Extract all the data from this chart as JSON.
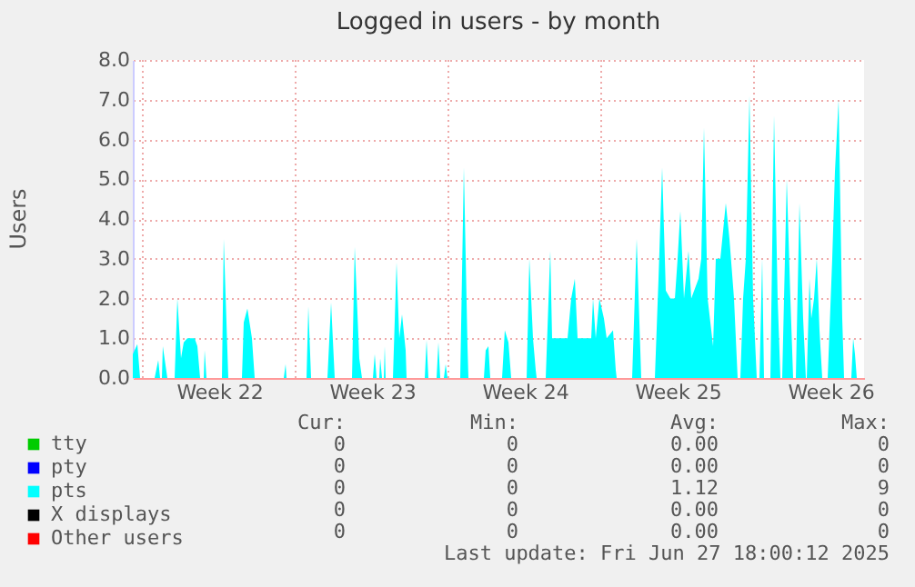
{
  "chart_data": {
    "type": "area",
    "title": "Logged in users - by month",
    "ylabel": "Users",
    "xlim": [
      "2025-05-25T13:00",
      "2025-06-28T01:00"
    ],
    "xticks": [
      {
        "value": "2025-05-26",
        "label": null
      },
      {
        "value": "2025-05-29T12:00",
        "label": "Week 22"
      },
      {
        "value": "2025-06-02",
        "label": null
      },
      {
        "value": "2025-06-05T12:00",
        "label": "Week 23"
      },
      {
        "value": "2025-06-09",
        "label": null
      },
      {
        "value": "2025-06-12T12:00",
        "label": "Week 24"
      },
      {
        "value": "2025-06-16",
        "label": null
      },
      {
        "value": "2025-06-19T12:00",
        "label": "Week 25"
      },
      {
        "value": "2025-06-23",
        "label": null
      },
      {
        "value": "2025-06-26T12:00",
        "label": "Week 26"
      }
    ],
    "ylim": [
      0,
      8
    ],
    "yticks": [
      {
        "value": 0,
        "label": "0.0"
      },
      {
        "value": 1,
        "label": "1.0"
      },
      {
        "value": 2,
        "label": "2.0"
      },
      {
        "value": 3,
        "label": "3.0"
      },
      {
        "value": 4,
        "label": "4.0"
      },
      {
        "value": 5,
        "label": "5.0"
      },
      {
        "value": 6,
        "label": "6.0"
      },
      {
        "value": 7,
        "label": "7.0"
      },
      {
        "value": 8,
        "label": "8.0"
      }
    ],
    "grid": true,
    "legend": "bottom",
    "series": [
      {
        "name": "tty",
        "color": "#00cc00"
      },
      {
        "name": "pty",
        "color": "#0000ff"
      },
      {
        "name": "pts",
        "color": "#00ffff",
        "x": [
          "2025-05-25T13:00",
          "2025-05-25T18:00",
          "2025-05-25T21:00",
          "2025-05-26T13:00",
          "2025-05-26T17:00",
          "2025-05-26T19:00",
          "2025-05-26T21:00",
          "2025-05-26T22:00",
          "2025-05-27T03:00",
          "2025-05-27T11:00",
          "2025-05-27T14:00",
          "2025-05-27T18:00",
          "2025-05-27T21:00",
          "2025-05-28T01:00",
          "2025-05-28T09:00",
          "2025-05-28T12:00",
          "2025-05-28T15:00",
          "2025-05-28T19:00",
          "2025-05-28T20:00",
          "2025-05-28T22:00",
          "2025-05-29T15:00",
          "2025-05-29T17:00",
          "2025-05-29T22:00",
          "2025-05-30T13:00",
          "2025-05-30T15:00",
          "2025-05-30T19:00",
          "2025-05-31T00:00",
          "2025-05-31T03:00",
          "2025-06-01T11:00",
          "2025-06-01T13:00",
          "2025-06-01T14:00",
          "2025-06-02T12:00",
          "2025-06-02T14:00",
          "2025-06-02T17:00",
          "2025-06-03T11:00",
          "2025-06-03T15:00",
          "2025-06-03T19:00",
          "2025-06-04T14:00",
          "2025-06-04T17:00",
          "2025-06-04T22:00",
          "2025-06-05T01:00",
          "2025-06-05T13:00",
          "2025-06-05T15:00",
          "2025-06-05T17:00",
          "2025-06-05T20:00",
          "2025-06-05T21:00",
          "2025-06-05T23:00",
          "2025-06-06T01:00",
          "2025-06-06T02:00",
          "2025-06-06T03:00",
          "2025-06-06T11:00",
          "2025-06-06T15:00",
          "2025-06-06T18:00",
          "2025-06-06T21:00",
          "2025-06-07T01:00",
          "2025-06-07T02:00",
          "2025-06-07T22:00",
          "2025-06-08T00:00",
          "2025-06-08T02:00",
          "2025-06-08T11:00",
          "2025-06-08T13:00",
          "2025-06-08T15:00",
          "2025-06-08T19:00",
          "2025-06-08T21:00",
          "2025-06-08T23:00",
          "2025-06-09T13:00",
          "2025-06-09T17:00",
          "2025-06-09T21:00",
          "2025-06-09T22:00",
          "2025-06-10T15:00",
          "2025-06-10T17:00",
          "2025-06-10T20:00",
          "2025-06-10T22:00",
          "2025-06-11T11:00",
          "2025-06-11T14:00",
          "2025-06-11T18:00",
          "2025-06-11T21:00",
          "2025-06-12T14:00",
          "2025-06-12T17:00",
          "2025-06-12T21:00",
          "2025-06-13T00:00",
          "2025-06-13T01:00",
          "2025-06-13T11:00",
          "2025-06-13T16:00",
          "2025-06-13T18:00",
          "2025-06-14T11:00",
          "2025-06-14T15:00",
          "2025-06-14T19:00",
          "2025-06-14T22:00",
          "2025-06-15T13:00",
          "2025-06-15T15:00",
          "2025-06-15T18:00",
          "2025-06-15T22:00",
          "2025-06-16T03:00",
          "2025-06-16T06:00",
          "2025-06-16T13:00",
          "2025-06-16T16:00",
          "2025-06-16T17:00",
          "2025-06-17T10:00",
          "2025-06-17T15:00",
          "2025-06-17T20:00",
          "2025-06-18T11:00",
          "2025-06-18T15:00",
          "2025-06-18T19:00",
          "2025-06-18T23:00",
          "2025-06-19T04:00",
          "2025-06-19T09:00",
          "2025-06-19T12:00",
          "2025-06-19T15:00",
          "2025-06-19T19:00",
          "2025-06-20T00:00",
          "2025-06-20T03:00",
          "2025-06-20T11:00",
          "2025-06-20T14:00",
          "2025-06-20T17:00",
          "2025-06-20T21:00",
          "2025-06-21T03:00",
          "2025-06-21T06:00",
          "2025-06-21T11:00",
          "2025-06-21T17:00",
          "2025-06-21T21:00",
          "2025-06-22T02:00",
          "2025-06-22T06:00",
          "2025-06-22T09:00",
          "2025-06-22T12:00",
          "2025-06-22T15:00",
          "2025-06-22T19:00",
          "2025-06-22T23:00",
          "2025-06-23T03:00",
          "2025-06-23T06:00",
          "2025-06-23T09:00",
          "2025-06-23T11:00",
          "2025-06-23T18:00",
          "2025-06-23T22:00",
          "2025-06-24T02:00",
          "2025-06-24T05:00",
          "2025-06-24T07:00",
          "2025-06-24T12:00",
          "2025-06-24T16:00",
          "2025-06-24T19:00",
          "2025-06-24T22:00",
          "2025-06-25T02:00",
          "2025-06-25T06:00",
          "2025-06-25T09:00",
          "2025-06-25T10:00",
          "2025-06-25T13:00",
          "2025-06-25T15:00",
          "2025-06-25T18:00",
          "2025-06-25T21:00",
          "2025-06-26T00:00",
          "2025-06-26T03:00",
          "2025-06-26T09:00",
          "2025-06-26T14:00",
          "2025-06-26T17:00",
          "2025-06-26T21:00",
          "2025-06-27T01:00",
          "2025-06-27T03:00",
          "2025-06-27T11:00",
          "2025-06-27T13:00",
          "2025-06-27T15:00",
          "2025-06-27T17:00"
        ],
        "values": [
          0.6,
          0.85,
          0,
          0,
          0.45,
          0,
          0,
          0.8,
          0,
          0,
          2.0,
          0.5,
          0.9,
          1.0,
          1.0,
          0.8,
          0,
          0,
          0.7,
          0,
          0,
          3.5,
          0,
          0,
          1.4,
          1.75,
          1.0,
          0,
          0,
          0.35,
          0,
          0,
          1.8,
          0,
          0,
          1.9,
          0,
          0,
          3.3,
          0.5,
          0,
          0,
          0.6,
          0,
          0,
          0.5,
          0,
          0,
          0.8,
          0,
          0,
          2.9,
          1.0,
          1.6,
          0.7,
          0,
          0,
          0.95,
          0,
          0,
          0.9,
          0,
          0,
          0.35,
          0,
          0,
          5.3,
          0.8,
          0,
          0,
          0.7,
          0.8,
          0,
          0,
          1.2,
          0.9,
          0,
          0,
          3.0,
          1.0,
          0.2,
          0,
          0,
          3.2,
          1.0,
          1.0,
          2.0,
          2.5,
          1.0,
          1.0,
          2.0,
          1.0,
          2.0,
          1.5,
          1.0,
          1.2,
          0.2,
          0,
          0,
          3.5,
          0,
          0,
          2.5,
          5.3,
          2.2,
          2.0,
          2.0,
          3.0,
          4.2,
          2.0,
          3.2,
          2.0,
          2.5,
          3.0,
          6.3,
          2.0,
          0.8,
          3.0,
          3.0,
          4.4,
          3.5,
          2.0,
          0,
          0,
          2.0,
          3.0,
          7.1,
          2.0,
          0,
          0,
          3.0,
          0,
          0,
          6.6,
          2.0,
          0,
          0,
          5.0,
          2.0,
          0,
          0,
          4.4,
          1.5,
          0,
          0,
          2.5,
          1.5,
          2.0,
          3.0,
          1.2,
          0,
          0,
          3.0,
          5.2,
          7.0,
          1.5,
          0,
          0,
          1.0,
          0.6,
          0
        ]
      },
      {
        "name": "X displays",
        "color": "#000000"
      },
      {
        "name": "Other users",
        "color": "#ff0000"
      }
    ],
    "annotations": [
      "Cur:",
      "Min:",
      "Avg:",
      "Max:",
      "0",
      "0",
      "0.00",
      "0",
      "0",
      "0",
      "0.00",
      "0",
      "0",
      "0",
      "1.12",
      "9",
      "0",
      "0",
      "0.00",
      "0",
      "0",
      "0",
      "0.00",
      "0",
      "Last update: Fri Jun 27 18:00:12 2025"
    ]
  }
}
